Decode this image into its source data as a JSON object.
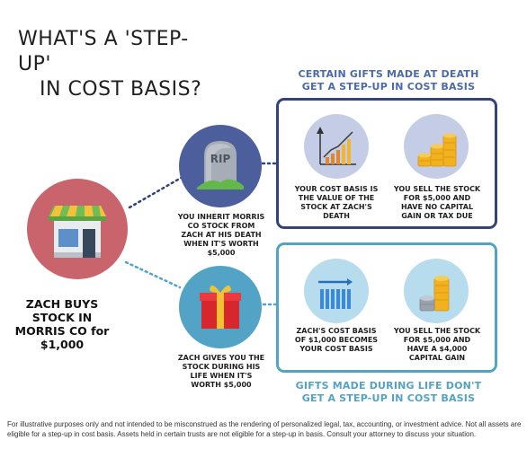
{
  "title": {
    "line1": "WHAT'S A 'STEP-UP'",
    "line2": "IN COST BASIS?"
  },
  "top_section": {
    "heading_line1": "CERTAIN GIFTS MADE AT DEATH",
    "heading_line2": "GET A STEP-UP IN COST BASIS",
    "color": "#4a6aa8",
    "items": [
      {
        "icon": "rising-chart-icon",
        "text": "YOUR COST BASIS IS THE VALUE OF THE STOCK AT ZACH'S DEATH"
      },
      {
        "icon": "coin-stacks-icon",
        "text": "YOU SELL THE STOCK FOR $5,000 AND HAVE NO CAPITAL GAIN OR TAX DUE"
      }
    ]
  },
  "bottom_section": {
    "heading_line1": "GIFTS MADE DURING LIFE DON'T",
    "heading_line2": "GET A STEP-UP IN COST BASIS",
    "color": "#52a3c6",
    "items": [
      {
        "icon": "flat-chart-icon",
        "text": "ZACH'S COST BASIS OF $1,000 BECOMES YOUR COST BASIS"
      },
      {
        "icon": "coin-stacks-icon",
        "text": "YOU SELL THE STOCK FOR $5,000 AND HAVE A $4,000 CAPITAL GAIN"
      }
    ]
  },
  "branches": {
    "death": {
      "icon": "tombstone-icon",
      "icon_text": "RIP",
      "text": "YOU INHERIT MORRIS CO STOCK FROM ZACH AT HIS DEATH WHEN IT'S WORTH $5,000"
    },
    "life": {
      "icon": "gift-icon",
      "text": "ZACH GIVES YOU THE STOCK DURING HIS LIFE WHEN IT'S WORTH $5,000"
    }
  },
  "origin": {
    "icon": "storefront-icon",
    "text": "ZACH BUYS STOCK IN MORRIS CO for $1,000"
  },
  "footer": "For illustrative purposes only and not intended to be misconstrued as the rendering of personalized legal, tax, accounting, or investment advice. Not all assets are eligible for a step-up in cost basis. Assets held in certain trusts are not eligible for a step-up in basis. Consult your attorney to discuss your situation."
}
